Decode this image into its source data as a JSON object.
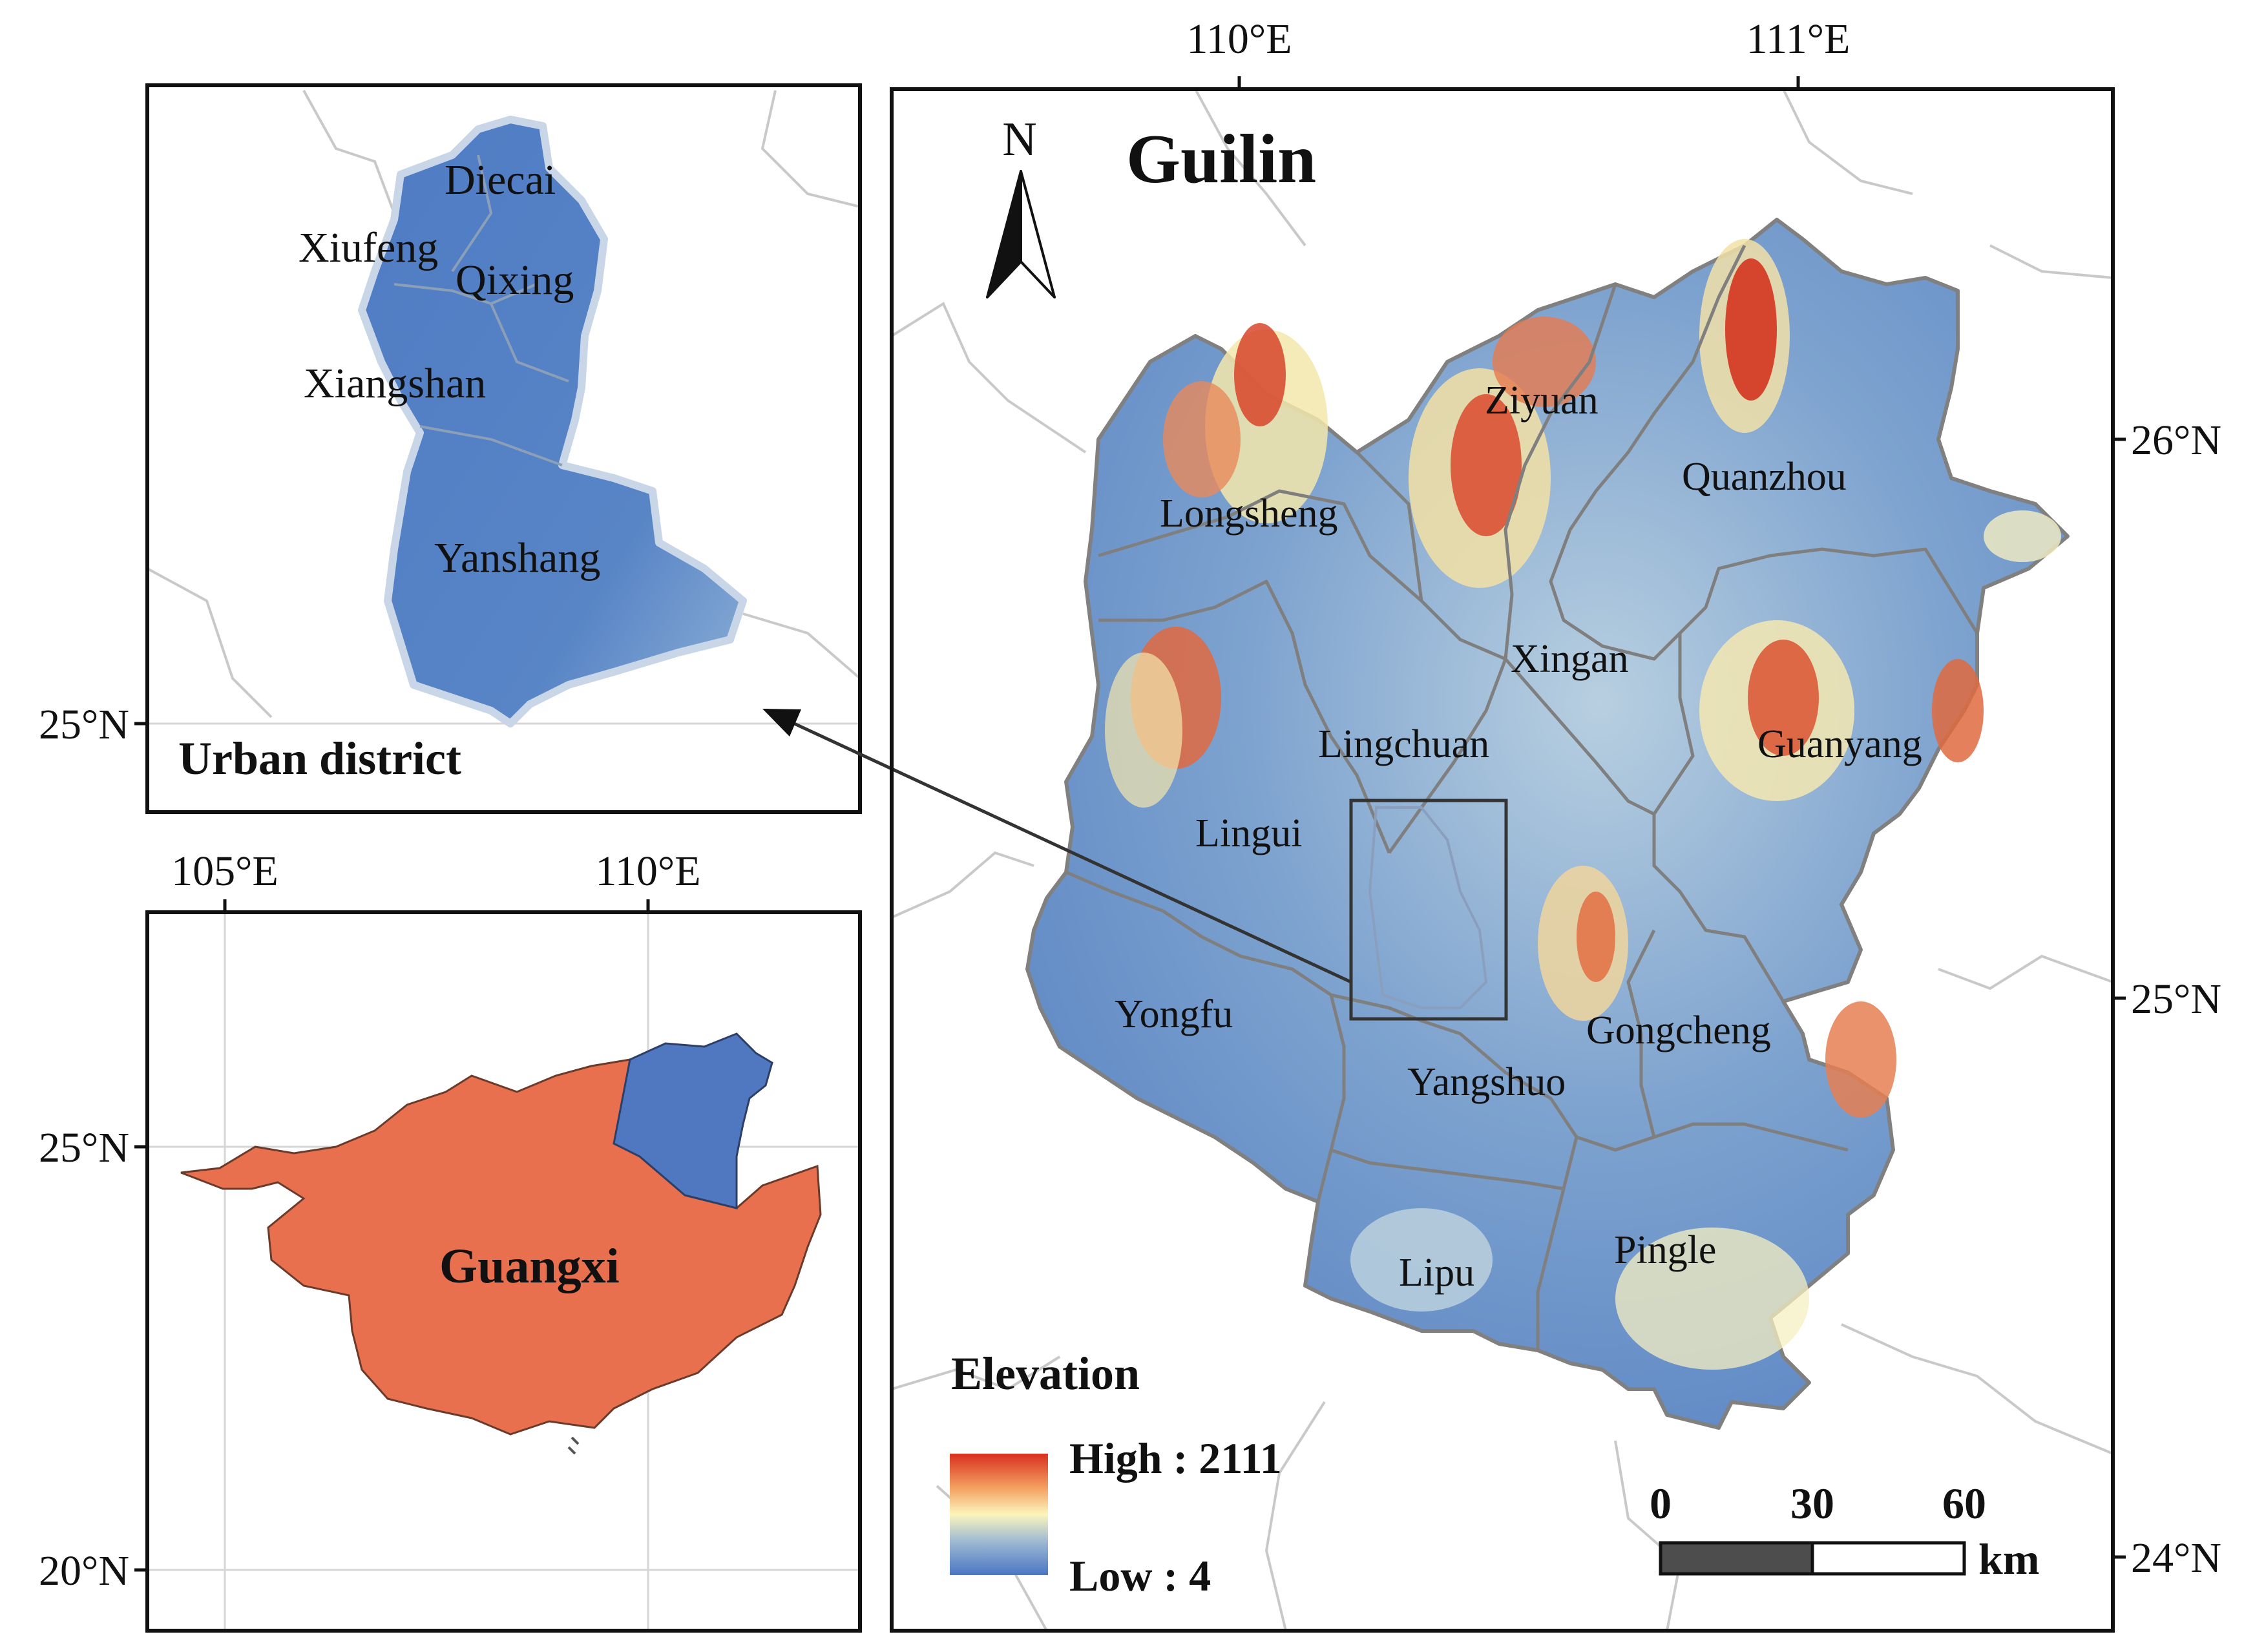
{
  "main_map": {
    "title": "Guilin",
    "north_label": "N",
    "lon_ticks": [
      "110°E",
      "111°E"
    ],
    "lat_ticks": [
      "26°N",
      "25°N",
      "24°N"
    ],
    "counties": [
      "Ziyuan",
      "Quanzhou",
      "Longsheng",
      "Xingan",
      "Lingchuan",
      "Guanyang",
      "Lingui",
      "Yongfu",
      "Gongcheng",
      "Yangshuo",
      "Lipu",
      "Pingle"
    ]
  },
  "legend": {
    "title": "Elevation",
    "high_label": "High : 2111",
    "low_label": "Low : 4",
    "ramp_colors": [
      "#d7301f",
      "#f4a060",
      "#fbf5bc",
      "#9fbad3",
      "#4a76c3"
    ]
  },
  "scale_bar": {
    "ticks": [
      "0",
      "30",
      "60"
    ],
    "unit": "km"
  },
  "urban_inset": {
    "title": "Urban district",
    "lat_tick": "25°N",
    "districts": [
      "Diecai",
      "Xiufeng",
      "Qixing",
      "Xiangshan",
      "Yanshang"
    ]
  },
  "guangxi_inset": {
    "label": "Guangxi",
    "lon_ticks": [
      "105°E",
      "110°E"
    ],
    "lat_ticks": [
      "25°N",
      "20°N"
    ],
    "province_color": "#e8704e",
    "guilin_color": "#4f78c0"
  }
}
